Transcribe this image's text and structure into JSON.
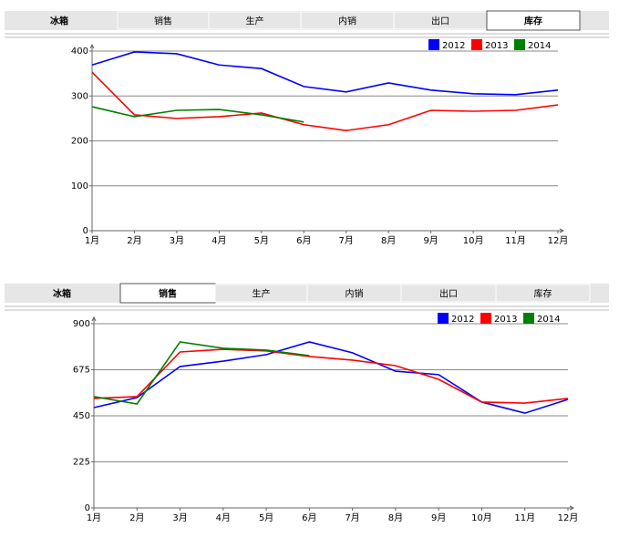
{
  "tab_bars": [
    {
      "label": "冰箱",
      "tabs": [
        "销售",
        "生产",
        "内销",
        "出口",
        "库存"
      ],
      "active": 4
    },
    {
      "label": "冰箱",
      "tabs": [
        "销售",
        "生产",
        "内销",
        "出口",
        "库存"
      ],
      "active": 0
    }
  ],
  "chart_data": [
    {
      "type": "line",
      "categories": [
        "1月",
        "2月",
        "3月",
        "4月",
        "5月",
        "6月",
        "7月",
        "8月",
        "9月",
        "10月",
        "11月",
        "12月"
      ],
      "series": [
        {
          "name": "2012",
          "color": "#0000ff",
          "values": [
            369,
            398,
            394,
            369,
            361,
            321,
            309,
            329,
            313,
            305,
            303,
            313
          ]
        },
        {
          "name": "2013",
          "color": "#ff0000",
          "values": [
            353,
            258,
            250,
            254,
            262,
            236,
            223,
            236,
            268,
            266,
            268,
            280
          ]
        },
        {
          "name": "2014",
          "color": "#008000",
          "values": [
            276,
            254,
            268,
            270,
            258,
            242,
            null,
            null,
            null,
            null,
            null,
            null
          ]
        }
      ],
      "ylim": [
        0,
        400
      ],
      "yticks": [
        0,
        100,
        200,
        300,
        400
      ],
      "grid": true,
      "legend": "top-right"
    },
    {
      "type": "line",
      "categories": [
        "1月",
        "2月",
        "3月",
        "4月",
        "5月",
        "6月",
        "7月",
        "8月",
        "9月",
        "10月",
        "11月",
        "12月"
      ],
      "series": [
        {
          "name": "2012",
          "color": "#0000ff",
          "values": [
            490,
            539,
            691,
            717,
            749,
            811,
            758,
            668,
            651,
            517,
            463,
            530
          ]
        },
        {
          "name": "2013",
          "color": "#ff0000",
          "values": [
            535,
            544,
            762,
            775,
            767,
            740,
            722,
            695,
            628,
            517,
            512,
            535
          ]
        },
        {
          "name": "2014",
          "color": "#008000",
          "values": [
            544,
            508,
            811,
            780,
            771,
            744,
            null,
            null,
            null,
            null,
            null,
            null
          ]
        }
      ],
      "ylim": [
        0,
        900
      ],
      "yticks": [
        0,
        225,
        450,
        675,
        900
      ],
      "grid": true,
      "legend": "top-right"
    }
  ]
}
